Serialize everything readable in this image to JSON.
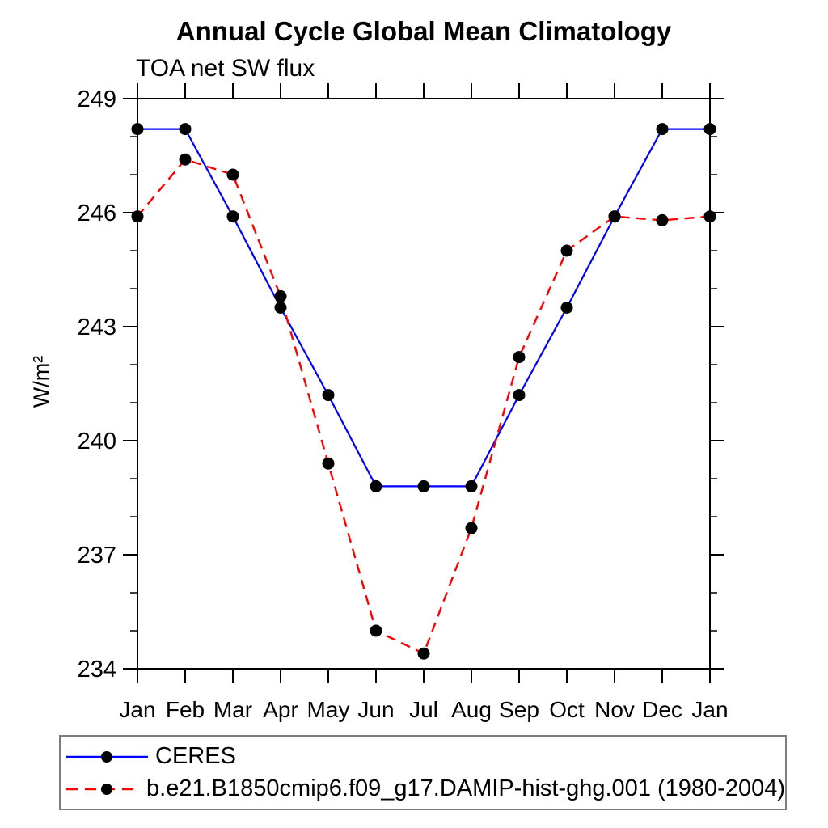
{
  "chart_data": {
    "type": "line",
    "title": "Annual Cycle Global Mean Climatology",
    "subtitle": "TOA net SW flux",
    "ylabel": "W/m²",
    "xlabel": "",
    "x_categories": [
      "Jan",
      "Feb",
      "Mar",
      "Apr",
      "May",
      "Jun",
      "Jul",
      "Aug",
      "Sep",
      "Oct",
      "Nov",
      "Dec",
      "Jan"
    ],
    "ylim": [
      234,
      249
    ],
    "y_major_ticks": [
      234,
      237,
      240,
      243,
      246,
      249
    ],
    "y_minor_step": 1,
    "grid": false,
    "legend_position": "bottom",
    "axis_color": "#000000",
    "marker_color": "#000000",
    "series": [
      {
        "name": "CERES",
        "color": "#0000ff",
        "line_style": "solid",
        "marker": "circle",
        "values": [
          248.2,
          248.2,
          245.9,
          243.5,
          241.2,
          238.8,
          238.8,
          238.8,
          241.2,
          243.5,
          245.9,
          248.2,
          248.2
        ]
      },
      {
        "name": "b.e21.B1850cmip6.f09_g17.DAMIP-hist-ghg.001 (1980-2004)",
        "color": "#ff0000",
        "line_style": "dashed",
        "marker": "circle",
        "values": [
          245.9,
          247.4,
          247.0,
          243.8,
          239.4,
          235.0,
          234.4,
          237.7,
          242.2,
          245.0,
          245.9,
          245.8,
          245.9
        ]
      }
    ]
  }
}
